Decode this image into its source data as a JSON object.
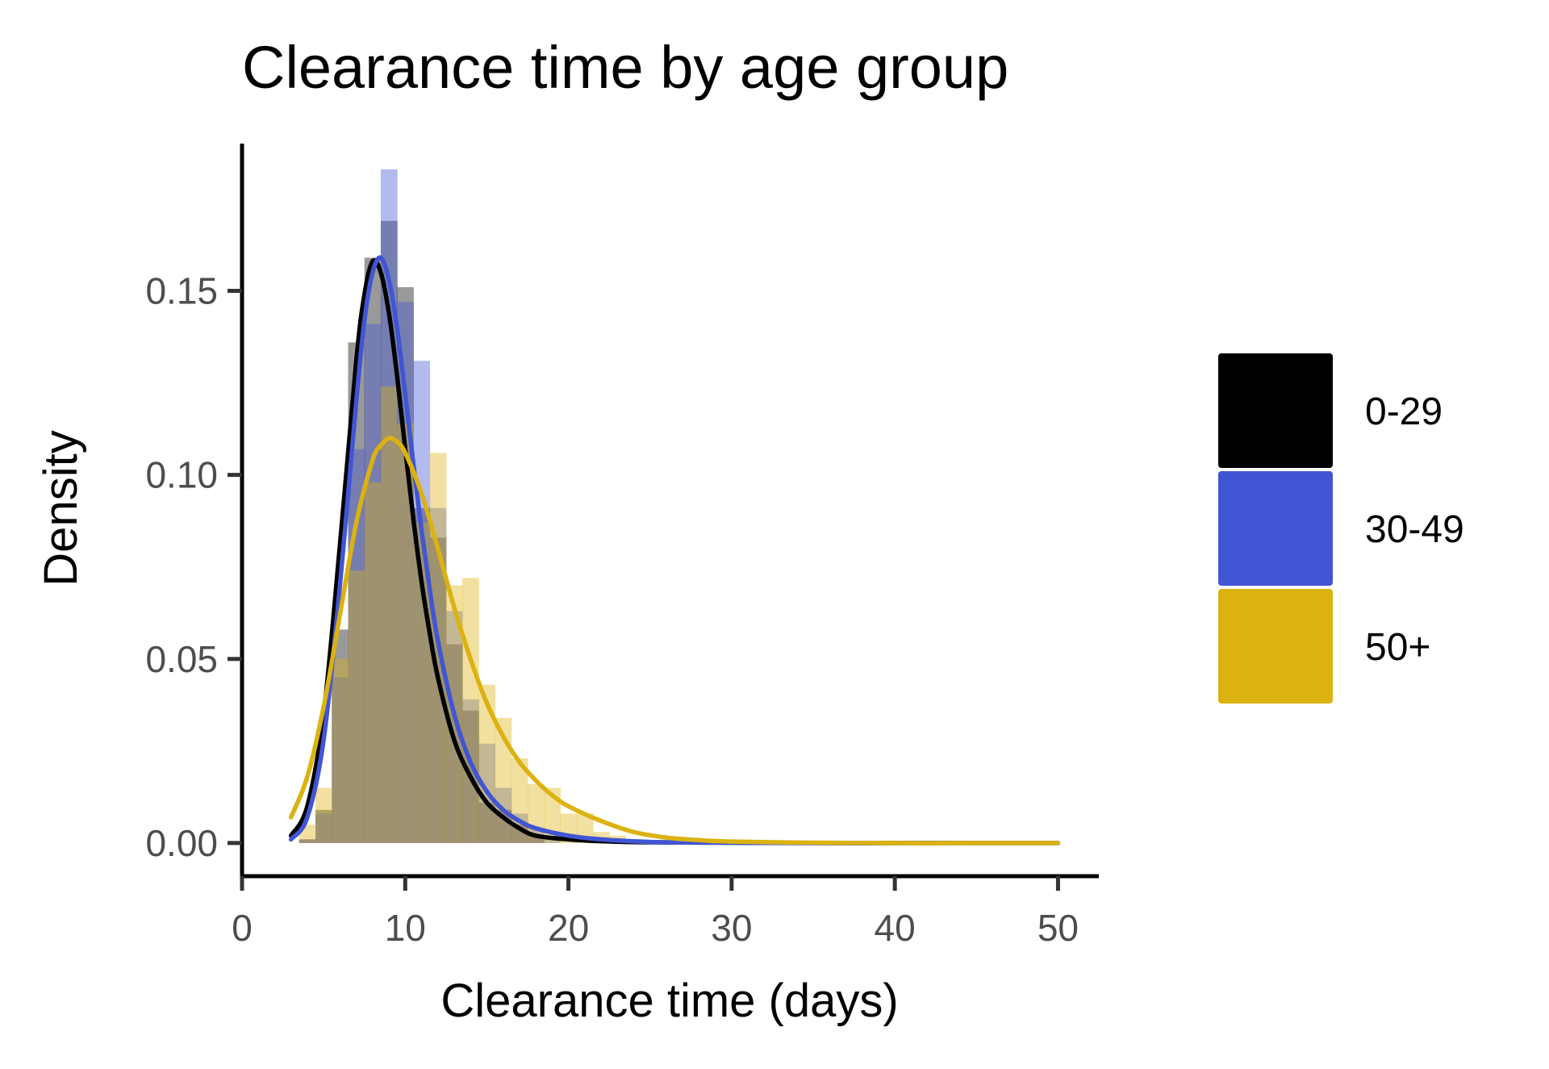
{
  "chart_data": {
    "type": "area",
    "title": "Clearance time by age group",
    "xlabel": "Clearance time (days)",
    "ylabel": "Density",
    "xlim": [
      0,
      52.5
    ],
    "ylim": [
      -0.009,
      0.19
    ],
    "x_ticks": [
      "0",
      "10",
      "20",
      "30",
      "40",
      "50"
    ],
    "y_ticks": [
      "0.00",
      "0.05",
      "0.10",
      "0.15"
    ],
    "grid": false,
    "legend_position": "right",
    "histogram_bin_width": 1,
    "series": [
      {
        "name": "0-29",
        "color": "#000000",
        "histogram": [
          {
            "x0": 3.5,
            "density": 0.001
          },
          {
            "x0": 4.5,
            "density": 0.009
          },
          {
            "x0": 5.5,
            "density": 0.058
          },
          {
            "x0": 6.5,
            "density": 0.136
          },
          {
            "x0": 7.5,
            "density": 0.159
          },
          {
            "x0": 8.5,
            "density": 0.169
          },
          {
            "x0": 9.5,
            "density": 0.151
          },
          {
            "x0": 10.5,
            "density": 0.091
          },
          {
            "x0": 11.5,
            "density": 0.083
          },
          {
            "x0": 12.5,
            "density": 0.054
          },
          {
            "x0": 13.5,
            "density": 0.036
          },
          {
            "x0": 14.5,
            "density": 0.011
          },
          {
            "x0": 15.5,
            "density": 0.009
          },
          {
            "x0": 16.5,
            "density": 0.005
          },
          {
            "x0": 17.5,
            "density": 0.002
          }
        ],
        "density_curve": {
          "x": [
            3,
            4,
            5,
            6,
            7,
            7.5,
            8,
            8.5,
            9,
            9.5,
            10,
            10.5,
            11,
            11.5,
            12,
            13,
            14,
            15,
            16,
            17,
            18,
            20,
            22,
            25,
            30,
            35,
            40,
            45,
            50
          ],
          "y": [
            0.002,
            0.01,
            0.035,
            0.081,
            0.131,
            0.149,
            0.158,
            0.155,
            0.144,
            0.127,
            0.107,
            0.088,
            0.071,
            0.057,
            0.045,
            0.028,
            0.018,
            0.011,
            0.007,
            0.004,
            0.002,
            0.001,
            0.0005,
            0.0002,
            0.0001,
            0,
            0,
            0,
            0
          ]
        }
      },
      {
        "name": "30-49",
        "color": "#4155d4",
        "histogram": [
          {
            "x0": 3.5,
            "density": 0.001
          },
          {
            "x0": 4.5,
            "density": 0.008
          },
          {
            "x0": 5.5,
            "density": 0.045
          },
          {
            "x0": 6.5,
            "density": 0.107
          },
          {
            "x0": 7.5,
            "density": 0.141
          },
          {
            "x0": 8.5,
            "density": 0.183
          },
          {
            "x0": 9.5,
            "density": 0.147
          },
          {
            "x0": 10.5,
            "density": 0.131
          },
          {
            "x0": 11.5,
            "density": 0.091
          },
          {
            "x0": 12.5,
            "density": 0.063
          },
          {
            "x0": 13.5,
            "density": 0.039
          },
          {
            "x0": 14.5,
            "density": 0.027
          },
          {
            "x0": 15.5,
            "density": 0.015
          },
          {
            "x0": 16.5,
            "density": 0.008
          },
          {
            "x0": 17.5,
            "density": 0.004
          },
          {
            "x0": 18.5,
            "density": 0.002
          }
        ],
        "density_curve": {
          "x": [
            3,
            4,
            5,
            6,
            7,
            7.5,
            8,
            8.5,
            9,
            9.5,
            10,
            10.5,
            11,
            11.5,
            12,
            13,
            14,
            15,
            16,
            17,
            18,
            20,
            22,
            25,
            30,
            35,
            40,
            45,
            50
          ],
          "y": [
            0.001,
            0.007,
            0.028,
            0.07,
            0.12,
            0.142,
            0.155,
            0.159,
            0.153,
            0.14,
            0.122,
            0.103,
            0.085,
            0.069,
            0.055,
            0.035,
            0.022,
            0.014,
            0.009,
            0.006,
            0.004,
            0.002,
            0.001,
            0.0003,
            0.0001,
            0,
            0,
            0,
            0
          ]
        }
      },
      {
        "name": "50+",
        "color": "#dbb210",
        "histogram": [
          {
            "x0": 3.5,
            "density": 0.005
          },
          {
            "x0": 4.5,
            "density": 0.015
          },
          {
            "x0": 5.5,
            "density": 0.05
          },
          {
            "x0": 6.5,
            "density": 0.074
          },
          {
            "x0": 7.5,
            "density": 0.098
          },
          {
            "x0": 8.5,
            "density": 0.124
          },
          {
            "x0": 9.5,
            "density": 0.114
          },
          {
            "x0": 10.5,
            "density": 0.087
          },
          {
            "x0": 11.5,
            "density": 0.106
          },
          {
            "x0": 12.5,
            "density": 0.07
          },
          {
            "x0": 13.5,
            "density": 0.072
          },
          {
            "x0": 14.5,
            "density": 0.043
          },
          {
            "x0": 15.5,
            "density": 0.034
          },
          {
            "x0": 16.5,
            "density": 0.023
          },
          {
            "x0": 17.5,
            "density": 0.016
          },
          {
            "x0": 18.5,
            "density": 0.015
          },
          {
            "x0": 19.5,
            "density": 0.008
          },
          {
            "x0": 20.5,
            "density": 0.008
          },
          {
            "x0": 21.5,
            "density": 0.003
          },
          {
            "x0": 22.5,
            "density": 0.002
          },
          {
            "x0": 23.5,
            "density": 0.001
          }
        ],
        "density_curve": {
          "x": [
            3,
            4,
            5,
            6,
            7,
            8,
            8.5,
            9,
            9.5,
            10,
            11,
            12,
            13,
            14,
            15,
            16,
            17,
            18,
            19,
            20,
            22,
            24,
            26,
            28,
            30,
            35,
            40,
            45,
            50
          ],
          "y": [
            0.007,
            0.018,
            0.037,
            0.062,
            0.087,
            0.104,
            0.108,
            0.11,
            0.109,
            0.106,
            0.095,
            0.08,
            0.064,
            0.05,
            0.038,
            0.029,
            0.022,
            0.017,
            0.013,
            0.01,
            0.006,
            0.003,
            0.0015,
            0.0008,
            0.0004,
            0.0001,
            0,
            0,
            0
          ]
        }
      }
    ]
  }
}
